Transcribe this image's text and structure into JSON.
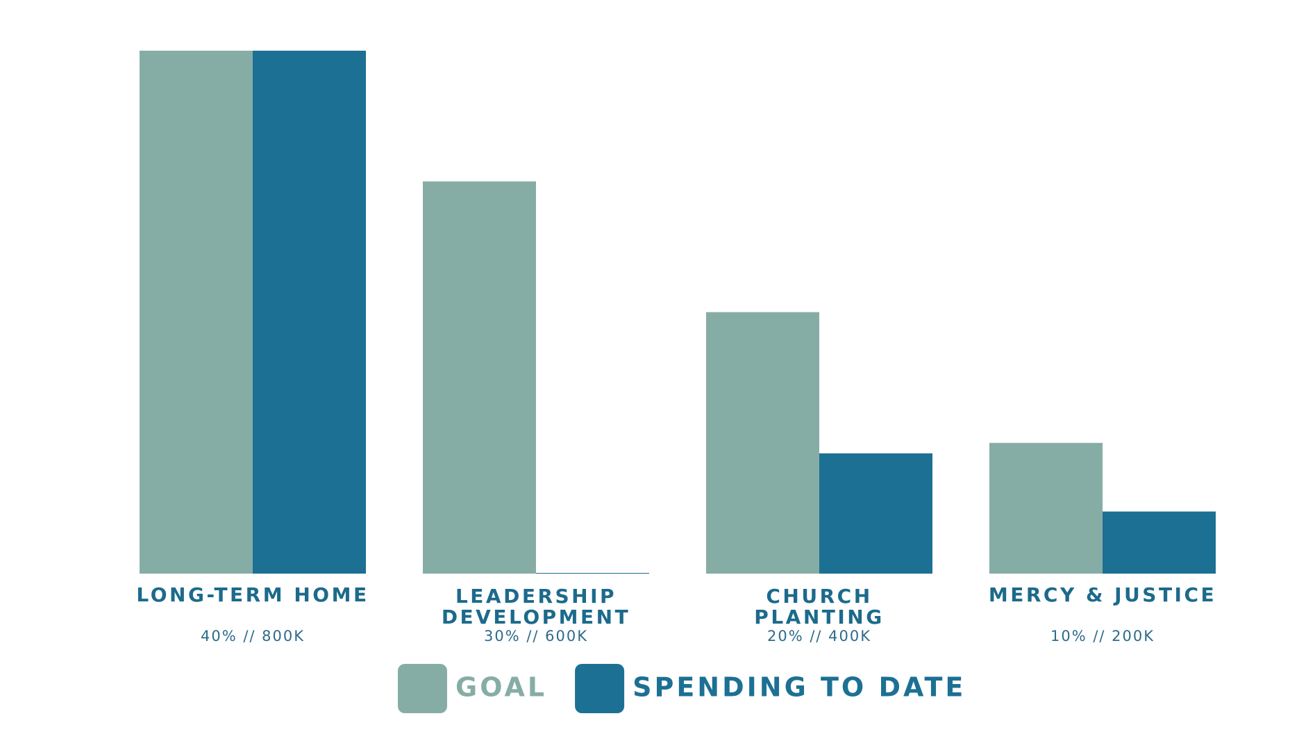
{
  "chart_data": {
    "type": "bar",
    "categories": [
      [
        "LONG-TERM HOME"
      ],
      [
        "LEADERSHIP",
        "DEVELOPMENT"
      ],
      [
        "CHURCH",
        "PLANTING"
      ],
      [
        "MERCY & JUSTICE"
      ]
    ],
    "category_notes": [
      "40% // 800K",
      "30% // 600K",
      "20% // 400K",
      "10% // 200K"
    ],
    "series": [
      {
        "name": "GOAL",
        "color": "#86ada5",
        "values": [
          800,
          600,
          400,
          200
        ]
      },
      {
        "name": "SPENDING TO DATE",
        "color": "#1c7094",
        "values": [
          800,
          0,
          184,
          95
        ]
      }
    ],
    "ylim": [
      0,
      800
    ]
  }
}
